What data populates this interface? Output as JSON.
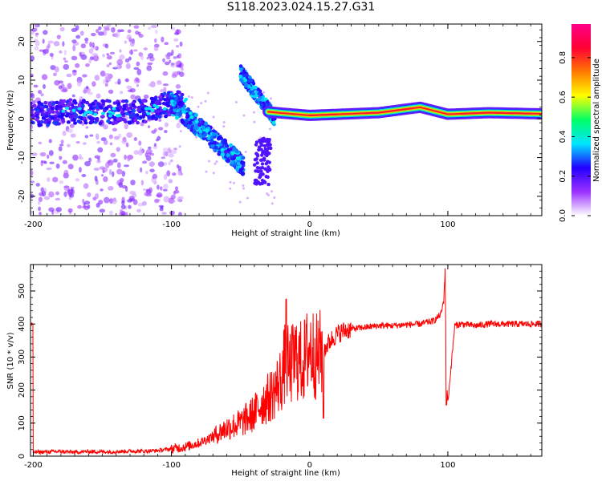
{
  "title": "S118.2023.024.15.27.G31",
  "chart_data": [
    {
      "type": "heatmap",
      "xlabel": "Height of straight line (km)",
      "ylabel": "Frequency (Hz)",
      "xlim": [
        -202,
        168
      ],
      "ylim": [
        -25,
        24.5
      ],
      "x_ticks": [
        -200,
        -100,
        0,
        100
      ],
      "y_ticks": [
        -20,
        -10,
        0,
        10,
        20
      ],
      "colorbar": {
        "label": "Normalized spectral amplitude",
        "range": [
          0,
          0.97
        ],
        "ticks": [
          0.0,
          0.2,
          0.4,
          0.6,
          0.8
        ],
        "colormap": [
          "#ffffff",
          "#9b30ff",
          "#2200ff",
          "#00e5ff",
          "#00ff66",
          "#ffff00",
          "#ff7a00",
          "#ff0033",
          "#ff0088"
        ]
      },
      "ridge": [
        {
          "x": -180,
          "f": 2.0
        },
        {
          "x": -160,
          "f": 1.8
        },
        {
          "x": -140,
          "f": 1.7
        },
        {
          "x": -120,
          "f": 2.0
        },
        {
          "x": -100,
          "f": 4.0
        },
        {
          "x": -90,
          "f": 4.5
        },
        {
          "x": -80,
          "f": -3.0
        },
        {
          "x": -60,
          "f": -7.0
        },
        {
          "x": -50,
          "f": -12.0
        },
        {
          "x": -45,
          "f": 8.0
        },
        {
          "x": -35,
          "f": 2.0
        },
        {
          "x": -20,
          "f": 1.5
        },
        {
          "x": 0,
          "f": 0.9
        },
        {
          "x": 50,
          "f": 1.6
        },
        {
          "x": 80,
          "f": 3.0
        },
        {
          "x": 100,
          "f": 1.2
        },
        {
          "x": 130,
          "f": 1.6
        },
        {
          "x": 168,
          "f": 1.3
        }
      ]
    },
    {
      "type": "line",
      "xlabel": "Height of straight line (km)",
      "ylabel": "SNR (10 * v/v)",
      "xlim": [
        -202,
        168
      ],
      "ylim": [
        0,
        580
      ],
      "x_ticks": [
        -200,
        -100,
        0,
        100
      ],
      "y_ticks": [
        0,
        100,
        200,
        300,
        400,
        500
      ],
      "series": [
        {
          "color": "#ff0000",
          "x": [
            -200,
            -190,
            -180,
            -170,
            -160,
            -150,
            -140,
            -130,
            -120,
            -110,
            -100,
            -90,
            -80,
            -70,
            -60,
            -50,
            -40,
            -35,
            -30,
            -25,
            -20,
            -17,
            -15,
            -10,
            -5,
            0,
            5,
            10,
            15,
            20,
            25,
            30,
            40,
            50,
            60,
            70,
            80,
            85,
            90,
            95,
            97,
            98,
            99,
            100,
            105,
            110,
            120,
            130,
            140,
            150,
            160,
            168
          ],
          "y": [
            12,
            13,
            14,
            12,
            14,
            13,
            14,
            15,
            15,
            17,
            22,
            28,
            40,
            60,
            85,
            100,
            130,
            160,
            175,
            200,
            240,
            300,
            260,
            300,
            280,
            330,
            300,
            320,
            350,
            370,
            380,
            385,
            390,
            395,
            395,
            398,
            400,
            405,
            410,
            430,
            470,
            560,
            250,
            160,
            395,
            400,
            395,
            400,
            400,
            400,
            400,
            400
          ]
        }
      ]
    }
  ]
}
